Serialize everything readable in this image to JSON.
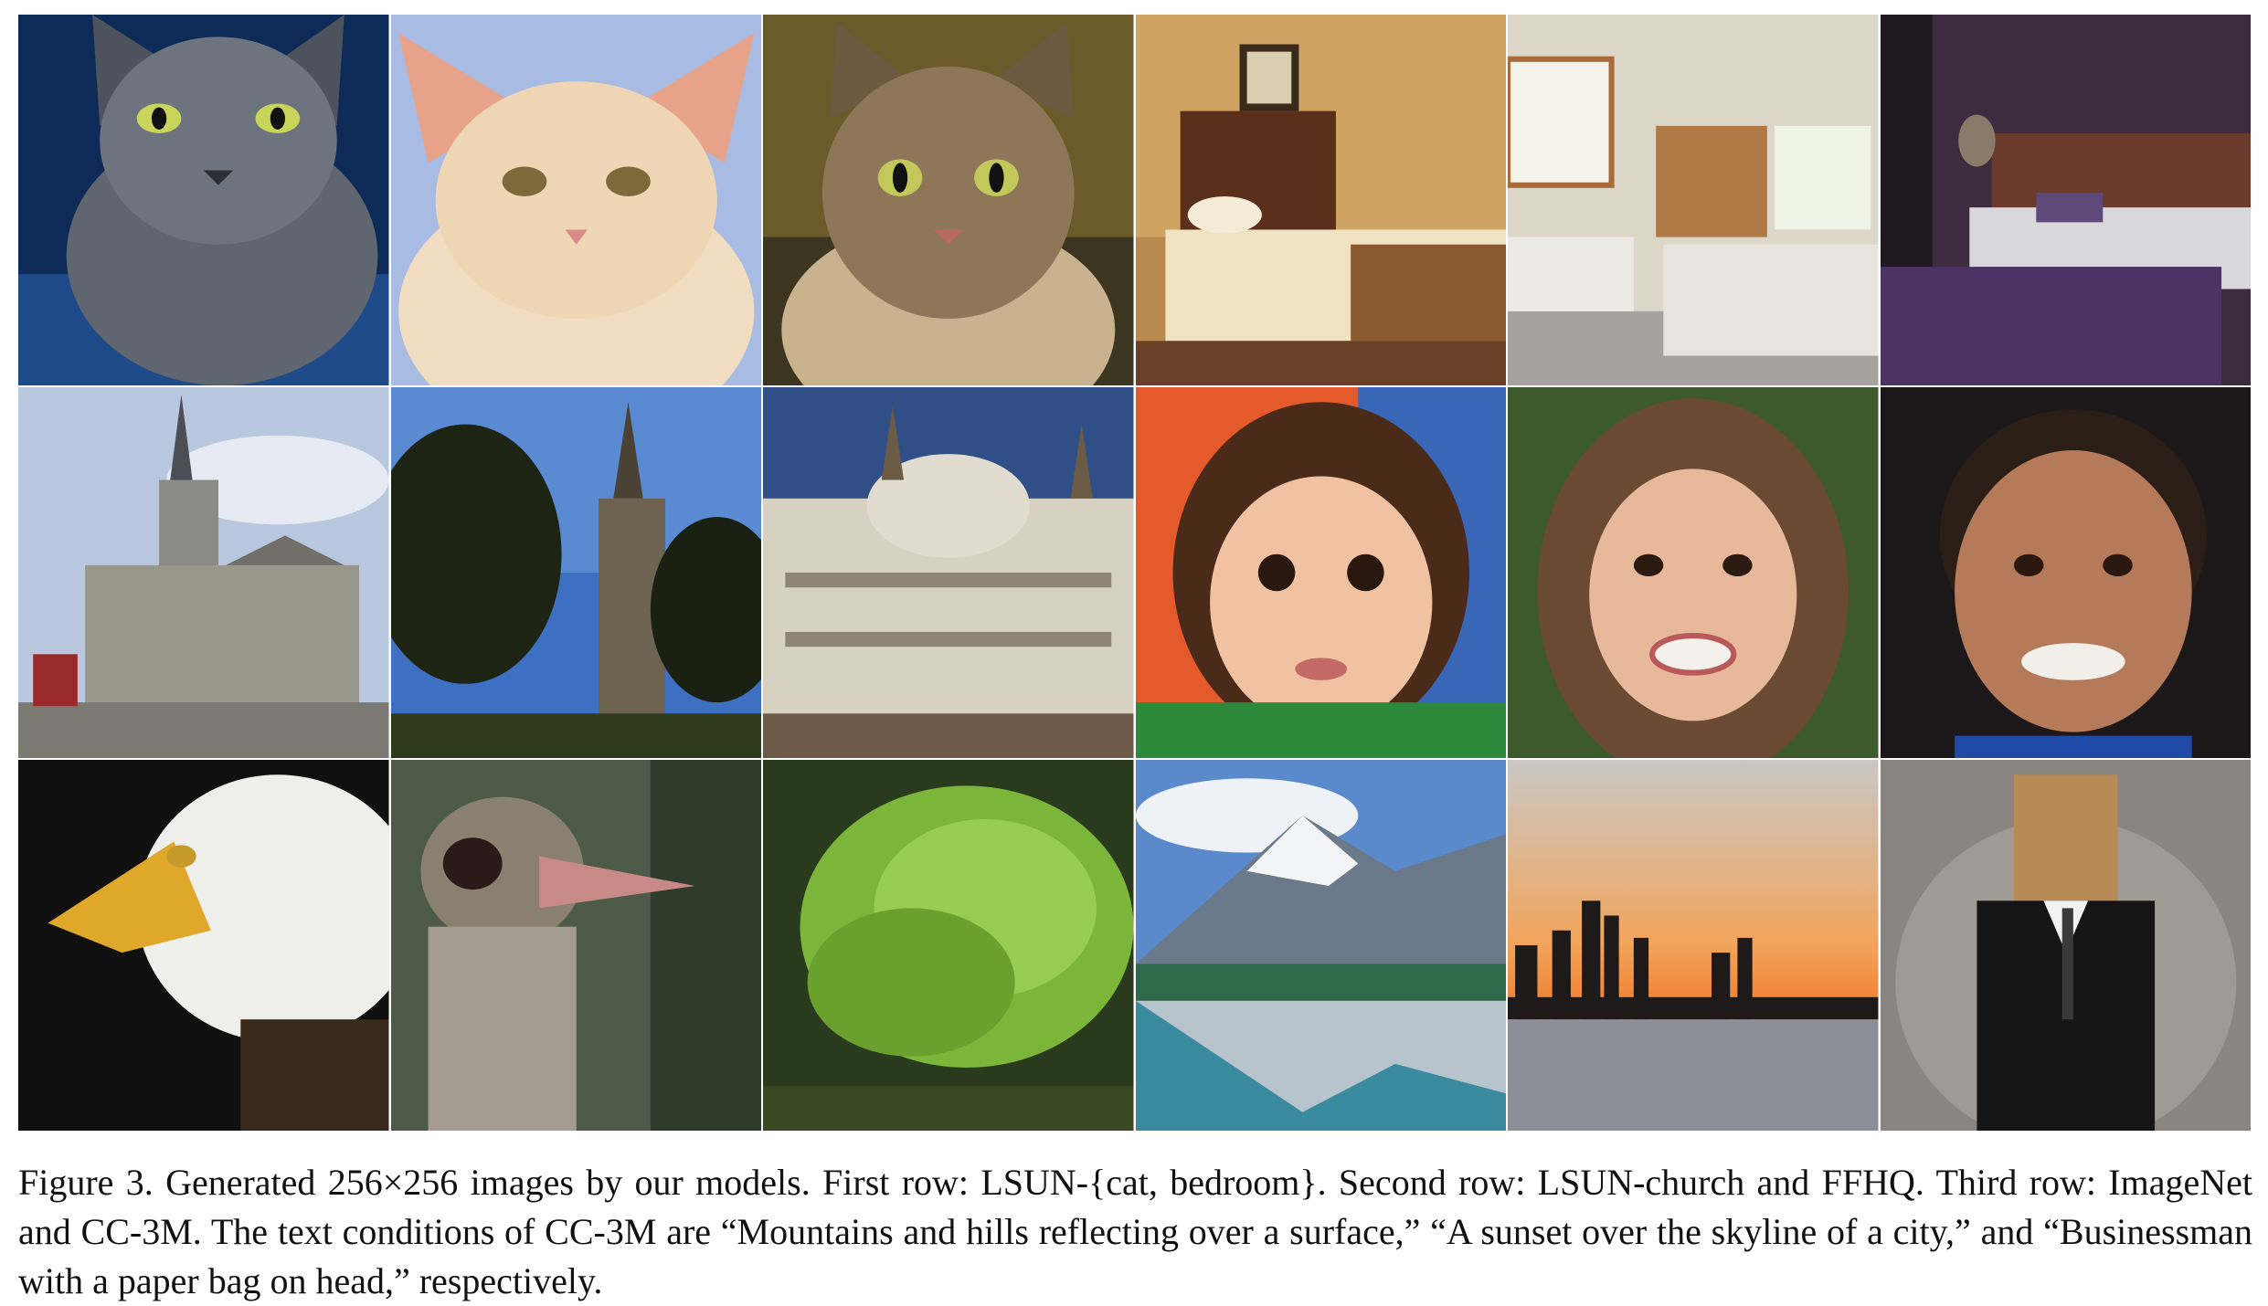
{
  "figure": {
    "caption": "Figure 3. Generated 256×256 images by our models. First row: LSUN-{cat, bedroom}. Second row: LSUN-church and FFHQ. Third row: ImageNet and CC-3M. The text conditions of CC-3M are “Mountains and hills reflecting over a surface,” “A sunset over the skyline of a city,” and “Businessman with a paper bag on head,” respectively."
  }
}
